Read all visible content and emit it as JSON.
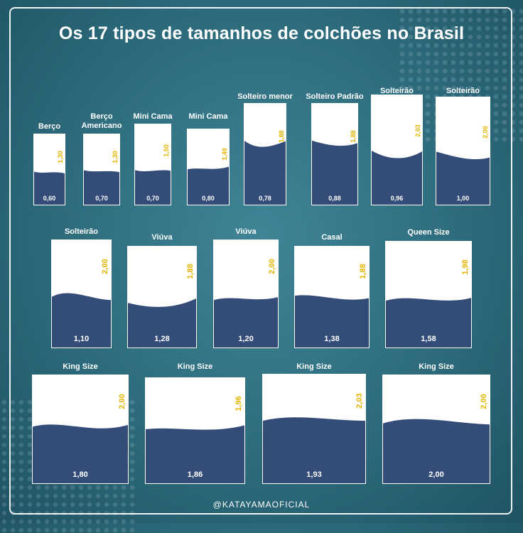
{
  "title": "Os 17 tipos de tamanhos de colchões no Brasil",
  "footer": "@KATAYAMAOFICIAL",
  "colors": {
    "wave": "#344d78",
    "height_text": "#e6b400",
    "mattress": "#ffffff"
  },
  "mattresses": [
    {
      "name": "Berço",
      "height": "1,30",
      "width": "0,60"
    },
    {
      "name": "Berço\nAmericano",
      "height": "1,30",
      "width": "0,70"
    },
    {
      "name": "Mini Cama",
      "height": "1,50",
      "width": "0,70"
    },
    {
      "name": "Mini Cama",
      "height": "1,40",
      "width": "0,80"
    },
    {
      "name": "Solteiro menor",
      "height": "1,88",
      "width": "0,78"
    },
    {
      "name": "Solteiro Padrão",
      "height": "1,88",
      "width": "0,88"
    },
    {
      "name": "Solteirão",
      "height": "2,03",
      "width": "0,96"
    },
    {
      "name": "Solteirão",
      "height": "2,00",
      "width": "1,00"
    },
    {
      "name": "Solteirão",
      "height": "2,00",
      "width": "1,10"
    },
    {
      "name": "Viúva",
      "height": "1,88",
      "width": "1,28"
    },
    {
      "name": "Viúva",
      "height": "2,00",
      "width": "1,20"
    },
    {
      "name": "Casal",
      "height": "1,88",
      "width": "1,38"
    },
    {
      "name": "Queen Size",
      "height": "1,98",
      "width": "1,58"
    },
    {
      "name": "King Size",
      "height": "2,00",
      "width": "1,80"
    },
    {
      "name": "King Size",
      "height": "1,96",
      "width": "1,86"
    },
    {
      "name": "King Size",
      "height": "2,03",
      "width": "1,93"
    },
    {
      "name": "King Size",
      "height": "2,00",
      "width": "2,00"
    }
  ]
}
